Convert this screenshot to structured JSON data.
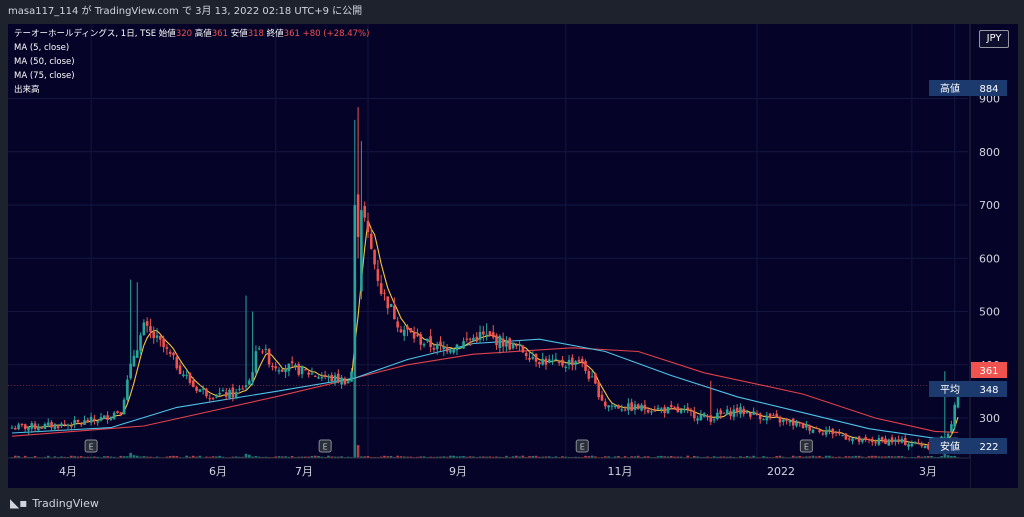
{
  "header": {
    "text": "masa117_114 が TradingView.com で 3月 13, 2022 02:18 UTC+9 に公開"
  },
  "legend": {
    "symbol": "テーオーホールディングス, 1日, TSE",
    "open_label": "始値",
    "open": "320",
    "high_label": "高値",
    "high": "361",
    "low_label": "安値",
    "low": "318",
    "close_label": "終値",
    "close": "361",
    "change": "+80 (+28.47%)",
    "indicators": [
      "MA (5, close)",
      "MA (50, close)",
      "MA (75, close)",
      "出来高"
    ]
  },
  "currency_button": "JPY",
  "footer": {
    "brand": "TradingView"
  },
  "colors": {
    "background": "#050428",
    "up": "#26a69a",
    "down": "#ef5350",
    "ma5": "#f5c542",
    "ma50": "#4dc3e8",
    "ma75": "#e0404a",
    "badge": "#1c3a6e",
    "grid": "#141640"
  },
  "chart_data": {
    "type": "candlestick",
    "y_ticks": [
      300,
      400,
      500,
      600,
      700,
      800,
      900
    ],
    "ylim": [
      225,
      1040
    ],
    "x_ticks": [
      "4月",
      "6月",
      "7月",
      "9月",
      "11月",
      "2022",
      "3月"
    ],
    "earnings_marker": "E",
    "price_labels": [
      {
        "label": "高値",
        "value": "884"
      },
      {
        "label": "平均",
        "value": "348"
      },
      {
        "label": "安値",
        "value": "222"
      }
    ],
    "last_price": "361",
    "anchors": [
      {
        "d": 0,
        "p": 282
      },
      {
        "d": 10,
        "p": 285
      },
      {
        "d": 20,
        "p": 290
      },
      {
        "d": 28,
        "p": 300
      },
      {
        "d": 30,
        "p": 308
      },
      {
        "d": 33,
        "p": 315
      },
      {
        "d": 37,
        "p": 420
      },
      {
        "d": 40,
        "p": 470
      },
      {
        "d": 45,
        "p": 440
      },
      {
        "d": 50,
        "p": 400
      },
      {
        "d": 55,
        "p": 360
      },
      {
        "d": 60,
        "p": 345
      },
      {
        "d": 68,
        "p": 345
      },
      {
        "d": 72,
        "p": 370
      },
      {
        "d": 75,
        "p": 440
      },
      {
        "d": 79,
        "p": 400
      },
      {
        "d": 84,
        "p": 395
      },
      {
        "d": 90,
        "p": 385
      },
      {
        "d": 96,
        "p": 375
      },
      {
        "d": 102,
        "p": 370
      },
      {
        "d": 104,
        "p": 405
      },
      {
        "d": 106,
        "p": 700
      },
      {
        "d": 108,
        "p": 640
      },
      {
        "d": 112,
        "p": 540
      },
      {
        "d": 118,
        "p": 470
      },
      {
        "d": 124,
        "p": 445
      },
      {
        "d": 130,
        "p": 430
      },
      {
        "d": 136,
        "p": 440
      },
      {
        "d": 142,
        "p": 455
      },
      {
        "d": 148,
        "p": 445
      },
      {
        "d": 154,
        "p": 430
      },
      {
        "d": 160,
        "p": 410
      },
      {
        "d": 166,
        "p": 400
      },
      {
        "d": 172,
        "p": 410
      },
      {
        "d": 176,
        "p": 370
      },
      {
        "d": 180,
        "p": 325
      },
      {
        "d": 186,
        "p": 320
      },
      {
        "d": 195,
        "p": 318
      },
      {
        "d": 205,
        "p": 310
      },
      {
        "d": 212,
        "p": 300
      },
      {
        "d": 220,
        "p": 315
      },
      {
        "d": 230,
        "p": 300
      },
      {
        "d": 240,
        "p": 285
      },
      {
        "d": 250,
        "p": 272
      },
      {
        "d": 258,
        "p": 255
      },
      {
        "d": 266,
        "p": 258
      },
      {
        "d": 274,
        "p": 252
      },
      {
        "d": 280,
        "p": 246
      },
      {
        "d": 285,
        "p": 282
      },
      {
        "d": 287,
        "p": 361
      }
    ],
    "spikes": [
      {
        "d": 36,
        "p": 560
      },
      {
        "d": 38,
        "p": 555
      },
      {
        "d": 71,
        "p": 530
      },
      {
        "d": 73,
        "p": 500
      },
      {
        "d": 104,
        "p": 860
      },
      {
        "d": 105,
        "p": 884
      },
      {
        "d": 106,
        "p": 820
      },
      {
        "d": 144,
        "p": 478
      },
      {
        "d": 212,
        "p": 370
      },
      {
        "d": 283,
        "p": 388
      }
    ],
    "volume_spikes": [
      {
        "d": 104,
        "v": 1.0
      },
      {
        "d": 105,
        "v": 0.55
      },
      {
        "d": 36,
        "v": 0.22
      },
      {
        "d": 71,
        "v": 0.18
      },
      {
        "d": 72,
        "v": 0.14
      },
      {
        "d": 37,
        "v": 0.12
      },
      {
        "d": 283,
        "v": 0.3
      },
      {
        "d": 284,
        "v": 0.12
      }
    ],
    "ma75_override": [
      {
        "d": 0,
        "p": 266
      },
      {
        "d": 40,
        "p": 285
      },
      {
        "d": 80,
        "p": 340
      },
      {
        "d": 104,
        "p": 375
      },
      {
        "d": 120,
        "p": 400
      },
      {
        "d": 140,
        "p": 420
      },
      {
        "d": 170,
        "p": 432
      },
      {
        "d": 190,
        "p": 425
      },
      {
        "d": 210,
        "p": 385
      },
      {
        "d": 240,
        "p": 345
      },
      {
        "d": 262,
        "p": 300
      },
      {
        "d": 280,
        "p": 275
      },
      {
        "d": 287,
        "p": 273
      }
    ],
    "ma50_override": [
      {
        "d": 0,
        "p": 272
      },
      {
        "d": 30,
        "p": 282
      },
      {
        "d": 50,
        "p": 320
      },
      {
        "d": 80,
        "p": 350
      },
      {
        "d": 104,
        "p": 375
      },
      {
        "d": 120,
        "p": 410
      },
      {
        "d": 140,
        "p": 440
      },
      {
        "d": 160,
        "p": 448
      },
      {
        "d": 180,
        "p": 425
      },
      {
        "d": 200,
        "p": 380
      },
      {
        "d": 220,
        "p": 340
      },
      {
        "d": 240,
        "p": 310
      },
      {
        "d": 260,
        "p": 280
      },
      {
        "d": 280,
        "p": 262
      },
      {
        "d": 287,
        "p": 262
      }
    ],
    "earnings_days": [
      24,
      95,
      173,
      241
    ]
  }
}
